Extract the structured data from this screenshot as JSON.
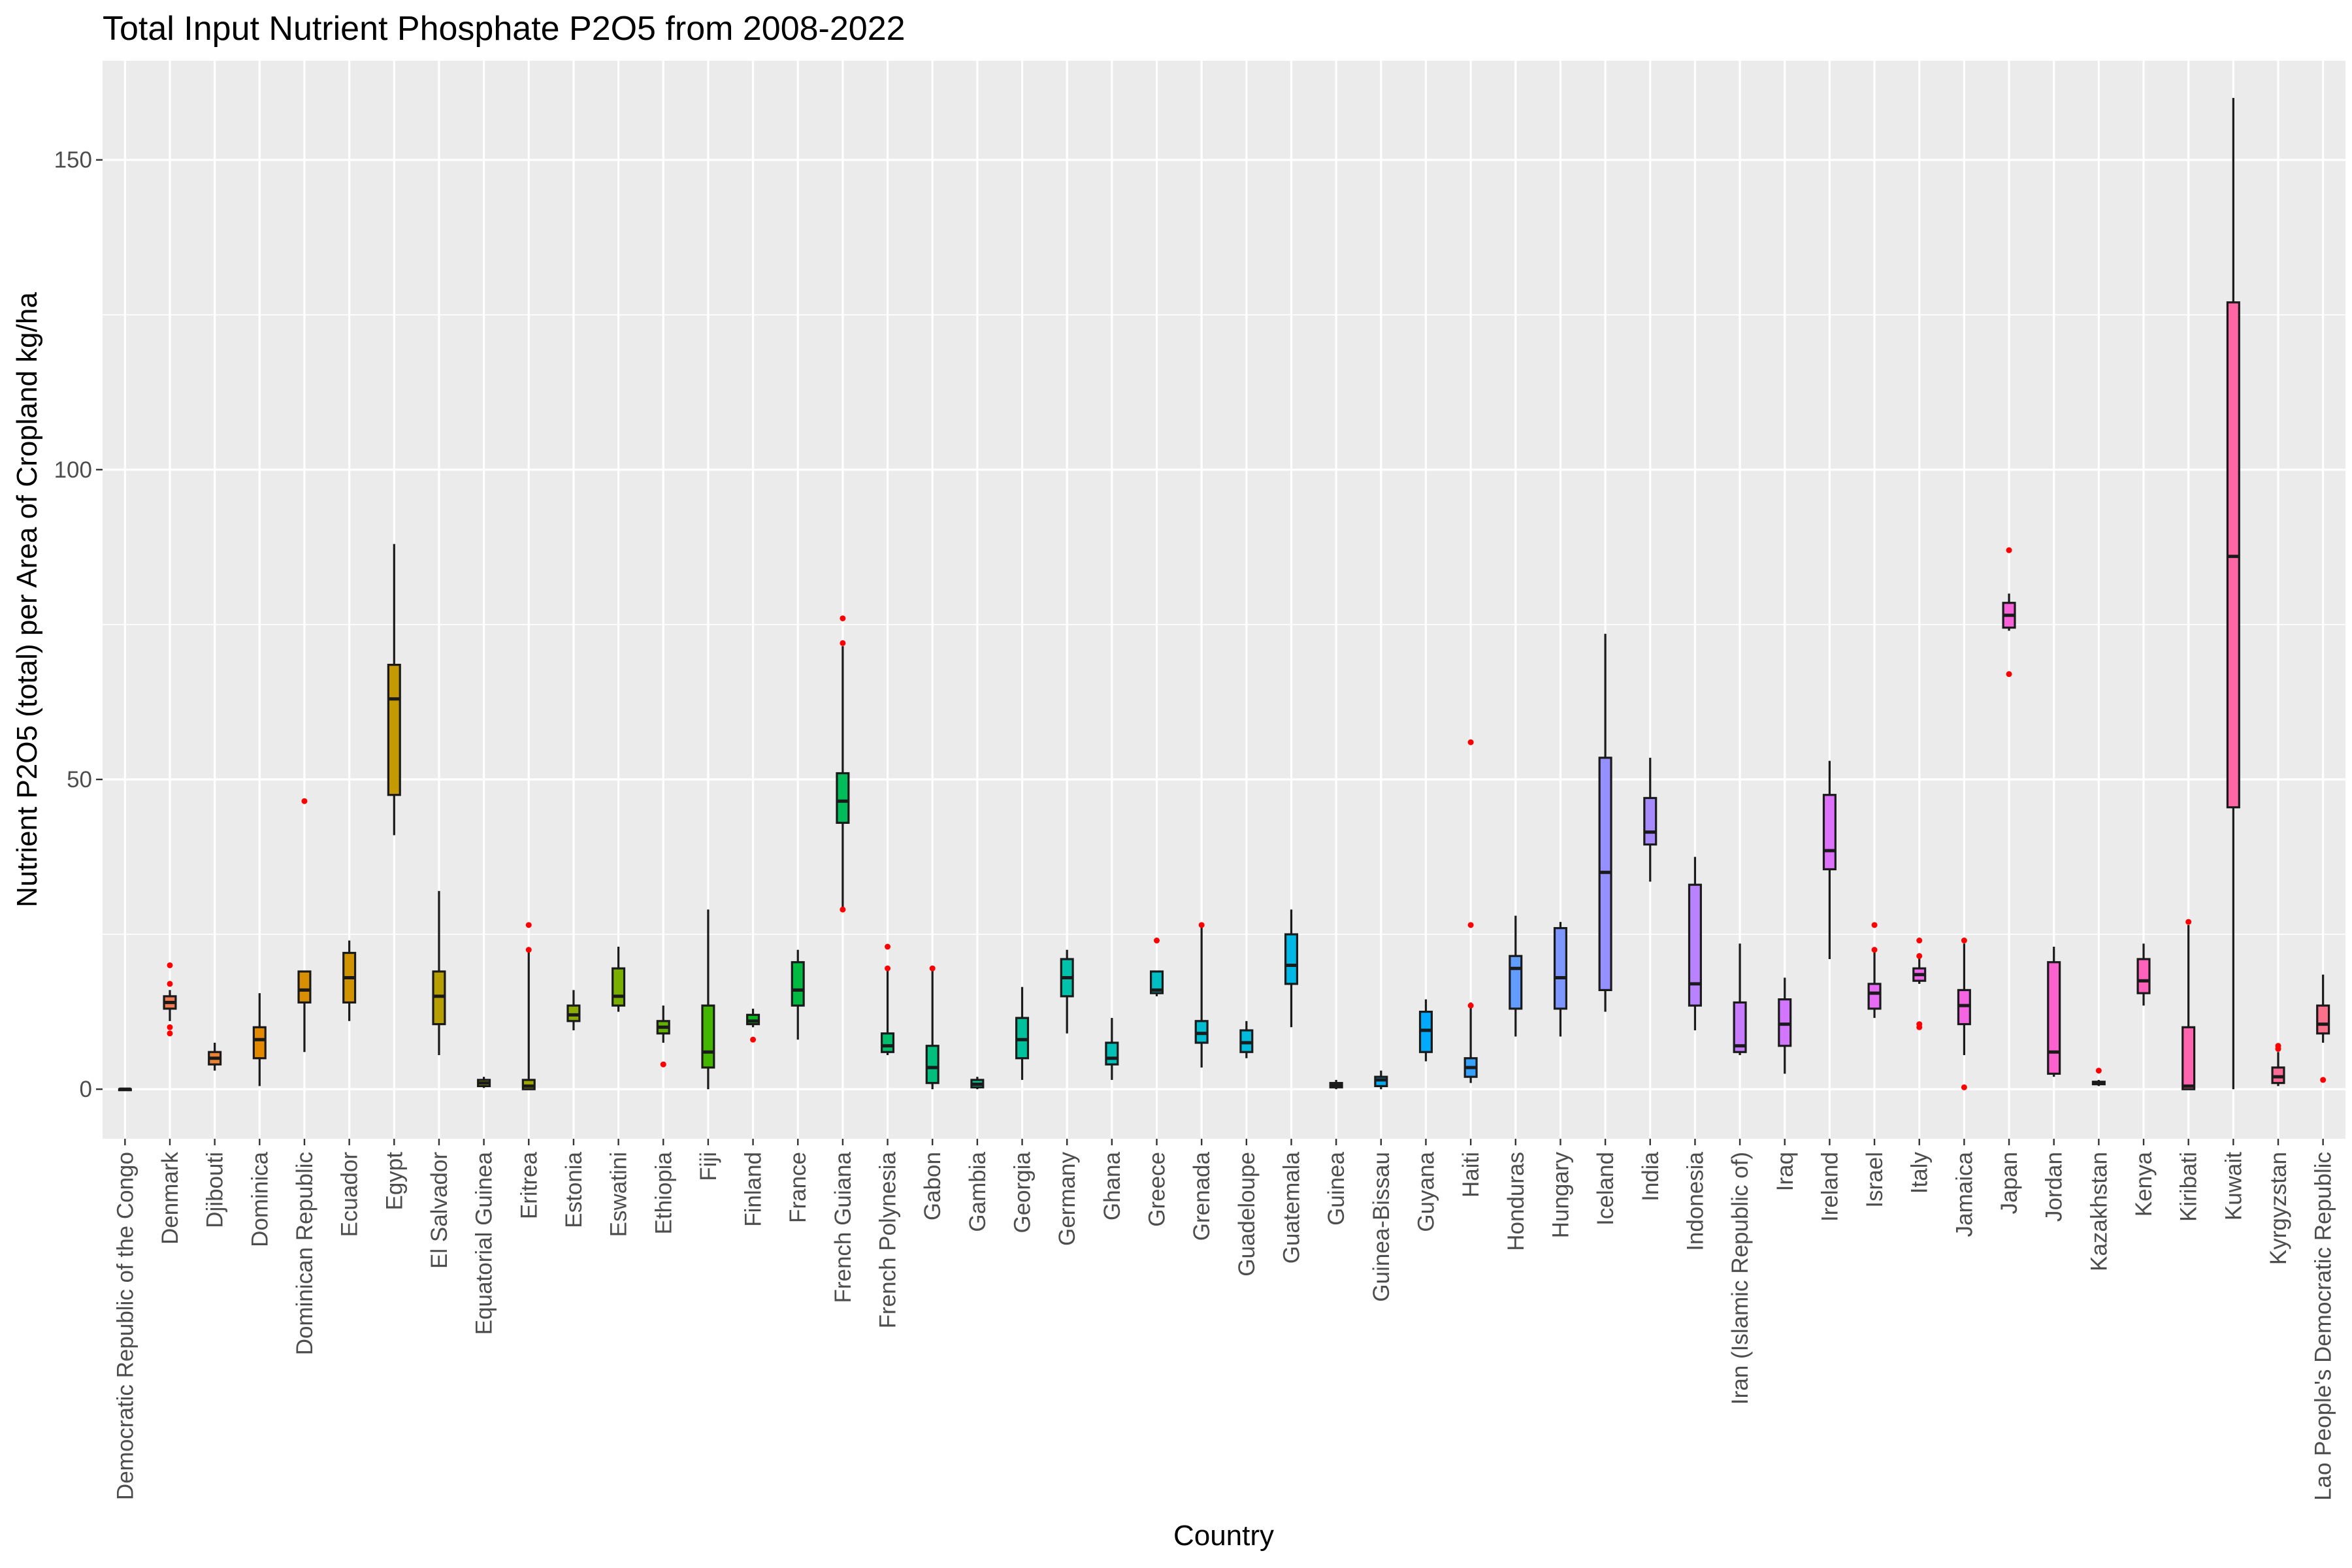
{
  "chart_data": {
    "type": "boxplot",
    "title": "Total Input Nutrient Phosphate P2O5 from 2008-2022",
    "xlabel": "Country",
    "ylabel": "Nutrient P2O5 (total) per Area of Cropland kg/ha",
    "ylim": [
      -8,
      166
    ],
    "yticks": [
      0,
      50,
      100,
      150
    ],
    "grid": true,
    "legend": "none",
    "outlier_color": "#ff0000",
    "categories": [
      "Democratic Republic of the Congo",
      "Denmark",
      "Djibouti",
      "Dominica",
      "Dominican Republic",
      "Ecuador",
      "Egypt",
      "El Salvador",
      "Equatorial Guinea",
      "Eritrea",
      "Estonia",
      "Eswatini",
      "Ethiopia",
      "Fiji",
      "Finland",
      "France",
      "French Guiana",
      "French Polynesia",
      "Gabon",
      "Gambia",
      "Georgia",
      "Germany",
      "Ghana",
      "Greece",
      "Grenada",
      "Guadeloupe",
      "Guatemala",
      "Guinea",
      "Guinea-Bissau",
      "Guyana",
      "Haiti",
      "Honduras",
      "Hungary",
      "Iceland",
      "India",
      "Indonesia",
      "Iran (Islamic Republic of)",
      "Iraq",
      "Ireland",
      "Israel",
      "Italy",
      "Jamaica",
      "Japan",
      "Jordan",
      "Kazakhstan",
      "Kenya",
      "Kiribati",
      "Kuwait",
      "Kyrgyzstan",
      "Lao People's Democratic Republic"
    ],
    "colors": [
      "#f8766d",
      "#f27d52",
      "#eb8335",
      "#e38900",
      "#d98f00",
      "#cf9400",
      "#c49a00",
      "#b79f00",
      "#aaa300",
      "#9ca700",
      "#8bab00",
      "#78af00",
      "#61b200",
      "#44b500",
      "#00b81f",
      "#00ba42",
      "#00bc59",
      "#00be6c",
      "#00bf7d",
      "#00c08d",
      "#00c19c",
      "#00c1aa",
      "#00c0b8",
      "#00bfc4",
      "#00bdd0",
      "#00bbdb",
      "#00b8e5",
      "#00b4ef",
      "#00b0f6",
      "#00abfd",
      "#35a2ff",
      "#619cff",
      "#7e96ff",
      "#9590ff",
      "#a88aff",
      "#b983ff",
      "#c77cff",
      "#d376ff",
      "#de71f9",
      "#e76bf3",
      "#ee67eb",
      "#f564e3",
      "#fa62da",
      "#fd61d0",
      "#ff61c5",
      "#ff62bb",
      "#ff64af",
      "#ff67a4",
      "#fd6b97",
      "#fb708a"
    ],
    "boxes": [
      {
        "min": 0,
        "q1": 0,
        "median": 0,
        "q3": 0,
        "max": 0,
        "outliers": []
      },
      {
        "min": 11,
        "q1": 13,
        "median": 14,
        "q3": 15,
        "max": 16,
        "outliers": [
          20,
          17,
          10,
          9
        ]
      },
      {
        "min": 3,
        "q1": 4,
        "median": 5,
        "q3": 6,
        "max": 7.5,
        "outliers": []
      },
      {
        "min": 0.5,
        "q1": 5,
        "median": 8,
        "q3": 10,
        "max": 15.5,
        "outliers": []
      },
      {
        "min": 6,
        "q1": 14,
        "median": 16,
        "q3": 19,
        "max": 19,
        "outliers": [
          46.5
        ]
      },
      {
        "min": 11,
        "q1": 14,
        "median": 18,
        "q3": 22,
        "max": 24,
        "outliers": []
      },
      {
        "min": 41,
        "q1": 47.5,
        "median": 63,
        "q3": 68.5,
        "max": 88,
        "outliers": []
      },
      {
        "min": 5.5,
        "q1": 10.5,
        "median": 15,
        "q3": 19,
        "max": 32,
        "outliers": []
      },
      {
        "min": 0.2,
        "q1": 0.5,
        "median": 1,
        "q3": 1.5,
        "max": 2,
        "outliers": []
      },
      {
        "min": 0,
        "q1": 0,
        "median": 0.5,
        "q3": 1.5,
        "max": 22.5,
        "outliers": [
          26.5,
          22.5
        ]
      },
      {
        "min": 9.5,
        "q1": 11,
        "median": 12,
        "q3": 13.5,
        "max": 16,
        "outliers": []
      },
      {
        "min": 12.5,
        "q1": 13.5,
        "median": 15,
        "q3": 19.5,
        "max": 23,
        "outliers": []
      },
      {
        "min": 7.5,
        "q1": 9,
        "median": 10,
        "q3": 11,
        "max": 13.5,
        "outliers": [
          4
        ]
      },
      {
        "min": 0,
        "q1": 3.5,
        "median": 6,
        "q3": 13.5,
        "max": 29,
        "outliers": []
      },
      {
        "min": 10,
        "q1": 10.5,
        "median": 11,
        "q3": 12,
        "max": 13,
        "outliers": [
          8
        ]
      },
      {
        "min": 8,
        "q1": 13.5,
        "median": 16,
        "q3": 20.5,
        "max": 22.5,
        "outliers": []
      },
      {
        "min": 29,
        "q1": 43,
        "median": 46.5,
        "q3": 51,
        "max": 71.5,
        "outliers": [
          76,
          72,
          29
        ]
      },
      {
        "min": 5.5,
        "q1": 6,
        "median": 7,
        "q3": 9,
        "max": 19.5,
        "outliers": [
          23,
          19.5
        ]
      },
      {
        "min": 0,
        "q1": 1,
        "median": 3.5,
        "q3": 7,
        "max": 19.5,
        "outliers": [
          19.5
        ]
      },
      {
        "min": 0,
        "q1": 0.3,
        "median": 0.8,
        "q3": 1.5,
        "max": 2,
        "outliers": []
      },
      {
        "min": 1.5,
        "q1": 5,
        "median": 8,
        "q3": 11.5,
        "max": 16.5,
        "outliers": []
      },
      {
        "min": 9,
        "q1": 15,
        "median": 18,
        "q3": 21,
        "max": 22.5,
        "outliers": []
      },
      {
        "min": 1.5,
        "q1": 4,
        "median": 5,
        "q3": 7.5,
        "max": 11.5,
        "outliers": []
      },
      {
        "min": 15,
        "q1": 15.5,
        "median": 16,
        "q3": 19,
        "max": 19,
        "outliers": [
          24
        ]
      },
      {
        "min": 3.5,
        "q1": 7.5,
        "median": 9,
        "q3": 11,
        "max": 26.5,
        "outliers": [
          26.5
        ]
      },
      {
        "min": 5,
        "q1": 6,
        "median": 7.5,
        "q3": 9.5,
        "max": 11,
        "outliers": []
      },
      {
        "min": 10,
        "q1": 17,
        "median": 20,
        "q3": 25,
        "max": 29,
        "outliers": []
      },
      {
        "min": 0,
        "q1": 0.3,
        "median": 0.6,
        "q3": 1,
        "max": 1.5,
        "outliers": []
      },
      {
        "min": 0,
        "q1": 0.5,
        "median": 1.5,
        "q3": 2,
        "max": 3,
        "outliers": []
      },
      {
        "min": 4.5,
        "q1": 6,
        "median": 9.5,
        "q3": 12.5,
        "max": 14.5,
        "outliers": []
      },
      {
        "min": 1,
        "q1": 2,
        "median": 3.5,
        "q3": 5,
        "max": 14,
        "outliers": [
          56,
          26.5,
          13.5
        ]
      },
      {
        "min": 8.5,
        "q1": 13,
        "median": 19.5,
        "q3": 21.5,
        "max": 28,
        "outliers": []
      },
      {
        "min": 8.5,
        "q1": 13,
        "median": 18,
        "q3": 26,
        "max": 27,
        "outliers": []
      },
      {
        "min": 12.5,
        "q1": 16,
        "median": 35,
        "q3": 53.5,
        "max": 73.5,
        "outliers": []
      },
      {
        "min": 33.5,
        "q1": 39.5,
        "median": 41.5,
        "q3": 47,
        "max": 53.5,
        "outliers": []
      },
      {
        "min": 9.5,
        "q1": 13.5,
        "median": 17,
        "q3": 33,
        "max": 37.5,
        "outliers": []
      },
      {
        "min": 5.5,
        "q1": 6,
        "median": 7,
        "q3": 14,
        "max": 23.5,
        "outliers": []
      },
      {
        "min": 2.5,
        "q1": 7,
        "median": 10.5,
        "q3": 14.5,
        "max": 18,
        "outliers": []
      },
      {
        "min": 21,
        "q1": 35.5,
        "median": 38.5,
        "q3": 47.5,
        "max": 53,
        "outliers": []
      },
      {
        "min": 11.5,
        "q1": 13,
        "median": 15.5,
        "q3": 17,
        "max": 22.5,
        "outliers": [
          26.5,
          22.5
        ]
      },
      {
        "min": 17,
        "q1": 17.5,
        "median": 18.5,
        "q3": 19.5,
        "max": 21.5,
        "outliers": [
          24,
          21.5,
          10.5,
          10
        ]
      },
      {
        "min": 5.5,
        "q1": 10.5,
        "median": 13.5,
        "q3": 16,
        "max": 23.5,
        "outliers": [
          24,
          0.3
        ]
      },
      {
        "min": 74,
        "q1": 74.5,
        "median": 76.5,
        "q3": 78.5,
        "max": 80,
        "outliers": [
          87,
          67
        ]
      },
      {
        "min": 2,
        "q1": 2.5,
        "median": 6,
        "q3": 20.5,
        "max": 23,
        "outliers": []
      },
      {
        "min": 0.5,
        "q1": 0.8,
        "median": 1,
        "q3": 1.2,
        "max": 1.5,
        "outliers": [
          3
        ]
      },
      {
        "min": 13.5,
        "q1": 15.5,
        "median": 17.5,
        "q3": 21,
        "max": 23.5,
        "outliers": []
      },
      {
        "min": 0,
        "q1": 0,
        "median": 0.5,
        "q3": 10,
        "max": 26.5,
        "outliers": [
          27
        ]
      },
      {
        "min": 0,
        "q1": 45.5,
        "median": 86,
        "q3": 127,
        "max": 160,
        "outliers": []
      },
      {
        "min": 0.5,
        "q1": 1,
        "median": 2,
        "q3": 3.5,
        "max": 6,
        "outliers": [
          7,
          6.5
        ]
      },
      {
        "min": 7.5,
        "q1": 9,
        "median": 10.5,
        "q3": 13.5,
        "max": 18.5,
        "outliers": [
          1.5
        ]
      }
    ]
  }
}
